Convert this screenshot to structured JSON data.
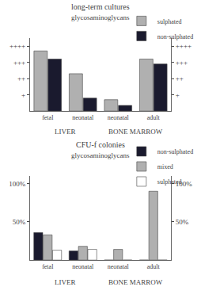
{
  "chart_data": [
    {
      "type": "bar",
      "title": "long-term cultures",
      "subtitle": "glycosaminoglycans",
      "categories": [
        "fetal",
        "neonatal",
        "neonatal",
        "adult"
      ],
      "series": [
        {
          "name": "sulphated",
          "color": "#b0b0b0",
          "values": [
            3.7,
            2.3,
            0.7,
            3.2
          ]
        },
        {
          "name": "non-sulphated",
          "color": "#1a1a2e",
          "values": [
            3.2,
            0.8,
            0.35,
            2.9
          ]
        }
      ],
      "ylim": [
        0,
        4.5
      ],
      "yticks": [
        {
          "value": 1,
          "label": "+"
        },
        {
          "value": 2,
          "label": "++"
        },
        {
          "value": 3,
          "label": "+++"
        },
        {
          "value": 4,
          "label": "++++"
        }
      ],
      "y2lim": [
        0,
        4.5
      ],
      "y2ticks": [
        {
          "value": 1,
          "label": "+"
        },
        {
          "value": 2,
          "label": "++"
        },
        {
          "value": 3,
          "label": "+++"
        },
        {
          "value": 4,
          "label": "++++"
        }
      ],
      "annotations": [
        {
          "text": "LIVER",
          "x": [
            0,
            1
          ]
        },
        {
          "text": "BONE MARROW",
          "x": [
            2,
            3
          ]
        }
      ],
      "legend": "upper right",
      "grid": false
    },
    {
      "type": "bar",
      "title": "CFU-f colonies",
      "subtitle": "glycosaminoglycans",
      "categories": [
        "fetal",
        "neonatal",
        "neonatal",
        "adult"
      ],
      "series": [
        {
          "name": "non-sulphated",
          "color": "#1a1a2e",
          "values": [
            36,
            12,
            0,
            0
          ]
        },
        {
          "name": "mixed",
          "color": "#b0b0b0",
          "values": [
            33,
            18,
            14,
            90
          ]
        },
        {
          "name": "sulphated",
          "color": "#ffffff",
          "values": [
            13,
            14,
            0,
            0
          ]
        }
      ],
      "ylim": [
        0,
        110
      ],
      "yticks": [
        {
          "value": 50,
          "label": "50%"
        },
        {
          "value": 100,
          "label": "100%"
        }
      ],
      "y2lim": [
        0,
        110
      ],
      "y2ticks": [
        {
          "value": 50,
          "label": "50%"
        },
        {
          "value": 100,
          "label": "100%"
        }
      ],
      "annotations": [
        {
          "text": "LIVER",
          "x": [
            0,
            1
          ]
        },
        {
          "text": "BONE MARROW",
          "x": [
            2,
            3
          ]
        }
      ],
      "legend": "upper right",
      "grid": false
    }
  ]
}
